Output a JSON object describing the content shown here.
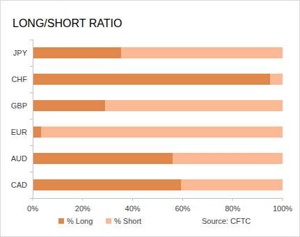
{
  "chart_data": {
    "type": "bar",
    "title": "LONG/SHORT RATIO",
    "orientation": "horizontal",
    "stacked": true,
    "categories": [
      "JPY",
      "CHF",
      "GBP",
      "EUR",
      "AUD",
      "CAD"
    ],
    "series": [
      {
        "name": "% Long",
        "color": "#e0874a",
        "values": [
          35.5,
          95,
          29,
          3.5,
          56,
          59.5
        ]
      },
      {
        "name": "% Short",
        "color": "#fbb993",
        "values": [
          64.5,
          5,
          71,
          96.5,
          44,
          40.5
        ]
      }
    ],
    "xlim": [
      0,
      100
    ],
    "xticks": [
      {
        "value": 0,
        "label": "0%"
      },
      {
        "value": 20,
        "label": "20%"
      },
      {
        "value": 40,
        "label": "40%"
      },
      {
        "value": 60,
        "label": "60%"
      },
      {
        "value": 80,
        "label": "80%"
      },
      {
        "value": 100,
        "label": "100%"
      }
    ],
    "grid": false,
    "legend": "bottom",
    "annotations": [
      "Source: CFTC"
    ]
  }
}
